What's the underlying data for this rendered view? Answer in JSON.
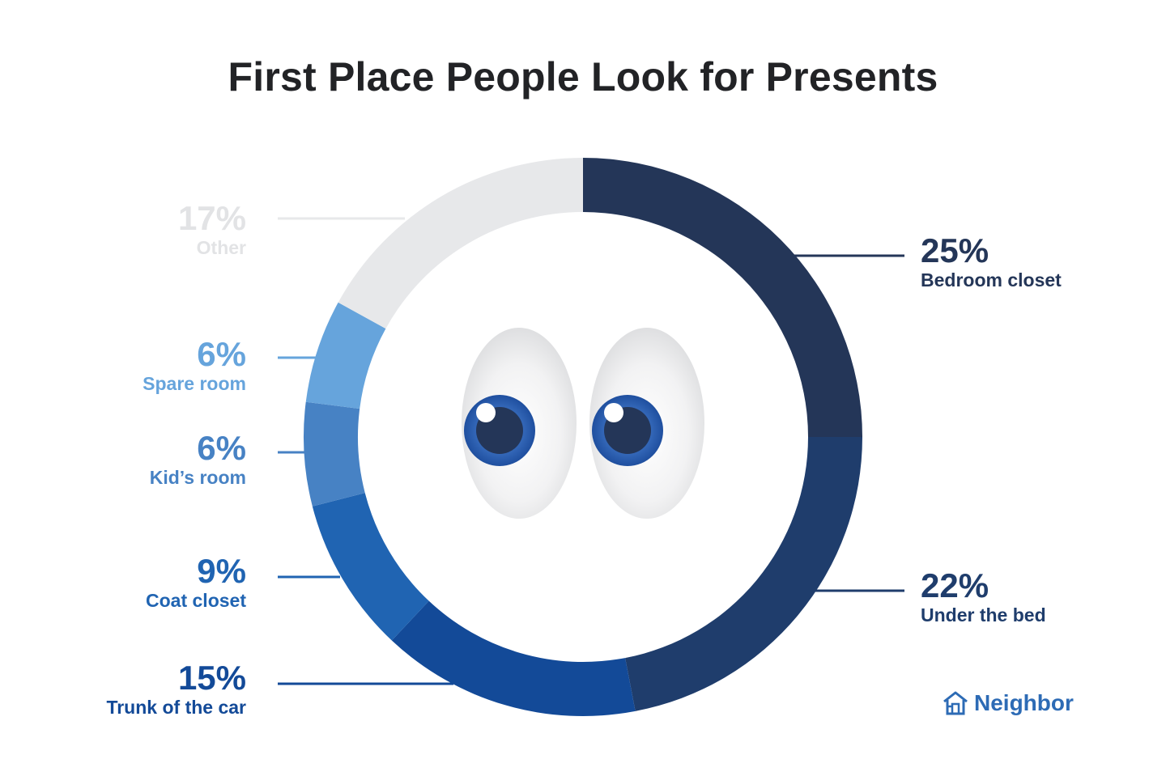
{
  "title": "First Place People Look for Presents",
  "brand": {
    "name": "Neighbor",
    "icon": "house-icon"
  },
  "chart_data": {
    "type": "pie",
    "variant": "donut",
    "title": "First Place People Look for Presents",
    "slices": [
      {
        "label": "Bedroom closet",
        "value": 25,
        "display": "25%",
        "color": "#243658",
        "side": "right"
      },
      {
        "label": "Under the bed",
        "value": 22,
        "display": "22%",
        "color": "#1f3d6c",
        "side": "right"
      },
      {
        "label": "Trunk of the car",
        "value": 15,
        "display": "15%",
        "color": "#134a98",
        "side": "left"
      },
      {
        "label": "Coat closet",
        "value": 9,
        "display": "9%",
        "color": "#2064b2",
        "side": "left"
      },
      {
        "label": "Kid’s room",
        "value": 6,
        "display": "6%",
        "color": "#4782c4",
        "side": "left"
      },
      {
        "label": "Spare room",
        "value": 6,
        "display": "6%",
        "color": "#66a4dc",
        "side": "left"
      },
      {
        "label": "Other",
        "value": 17,
        "display": "17%",
        "color": "#e7e8ea",
        "side": "left"
      }
    ]
  },
  "decoration": {
    "eyes": "cartoon-eyes-icon",
    "iris_color": "#2e62b4",
    "pupil_color": "#243658"
  }
}
